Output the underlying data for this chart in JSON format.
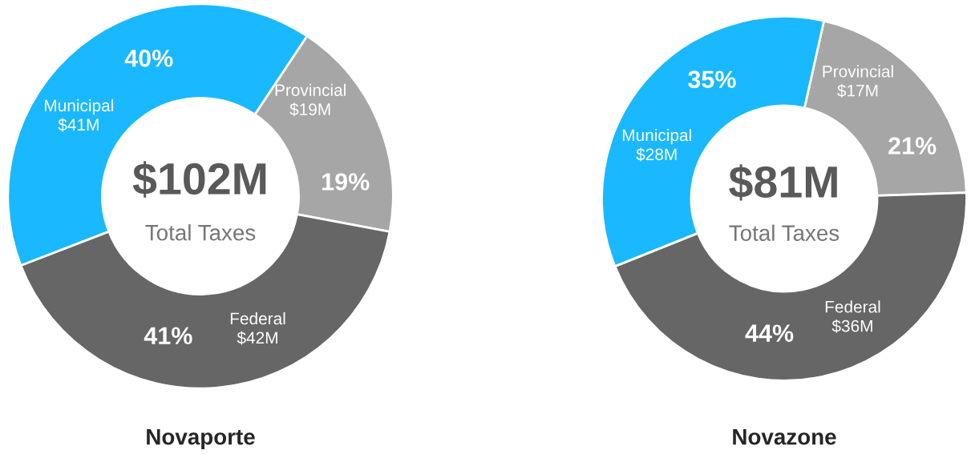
{
  "chart_data": [
    {
      "type": "donut",
      "title": "Novaporte",
      "categories": [
        "Provincial",
        "Federal",
        "Municipal"
      ],
      "values": [
        19,
        42,
        41
      ],
      "colors": [
        "#a6a6a6",
        "#666666",
        "#1ab8ff"
      ],
      "value_labels": [
        "$19M",
        "$42M",
        "$41M"
      ],
      "legend": false,
      "annotations": [
        {
          "text": "19%",
          "x": "Provincial"
        },
        {
          "text": "41%",
          "x": "Federal"
        },
        {
          "text": "40%",
          "x": "Municipal"
        },
        "$102M",
        "Total Taxes"
      ]
    },
    {
      "type": "donut",
      "title": "Novazone",
      "categories": [
        "Provincial",
        "Federal",
        "Municipal"
      ],
      "values": [
        17,
        36,
        28
      ],
      "colors": [
        "#a6a6a6",
        "#666666",
        "#1ab8ff"
      ],
      "value_labels": [
        "$17M",
        "$36M",
        "$28M"
      ],
      "legend": false,
      "annotations": [
        {
          "text": "21%",
          "x": "Provincial"
        },
        {
          "text": "44%",
          "x": "Federal"
        },
        {
          "text": "35%",
          "x": "Municipal"
        },
        "$81M",
        "Total Taxes"
      ]
    }
  ]
}
